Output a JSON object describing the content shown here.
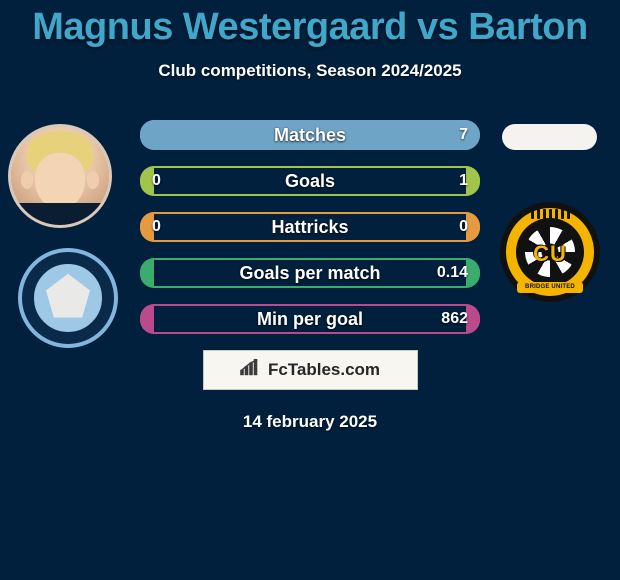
{
  "title_color": "#40a7cb",
  "title": "Magnus Westergaard vs Barton",
  "subtitle": "Club competitions, Season 2024/2025",
  "date": "14 february 2025",
  "brand_text": "FcTables.com",
  "left": {
    "avatar_name": "player-avatar-westergaard",
    "club_name": "club-badge-wycombe"
  },
  "right": {
    "blank_name": "player-avatar-barton-placeholder",
    "club_name": "club-badge-cambridge",
    "club_letters": "CU",
    "club_ribbon": "BRIDGE UNITED"
  },
  "stats": [
    {
      "label": "Matches",
      "left_val": "",
      "right_val": "7",
      "left_pct": 0.04,
      "right_pct": 0.96,
      "color": "#6ea4c5"
    },
    {
      "label": "Goals",
      "left_val": "0",
      "right_val": "1",
      "left_pct": 0.04,
      "right_pct": 0.04,
      "color": "#a1c44b"
    },
    {
      "label": "Hattricks",
      "left_val": "0",
      "right_val": "0",
      "left_pct": 0.04,
      "right_pct": 0.04,
      "color": "#e59a40"
    },
    {
      "label": "Goals per match",
      "left_val": "",
      "right_val": "0.14",
      "left_pct": 0.04,
      "right_pct": 0.04,
      "color": "#3cab6e"
    },
    {
      "label": "Min per goal",
      "left_val": "",
      "right_val": "862",
      "left_pct": 0.04,
      "right_pct": 0.04,
      "color": "#bb4a8d"
    }
  ],
  "colors": {
    "bg": "#00203d",
    "brand_box_bg": "#f7f6f1",
    "brand_box_border": "#c9c9c0",
    "brand_icon_fill": "#3a3a3a"
  }
}
